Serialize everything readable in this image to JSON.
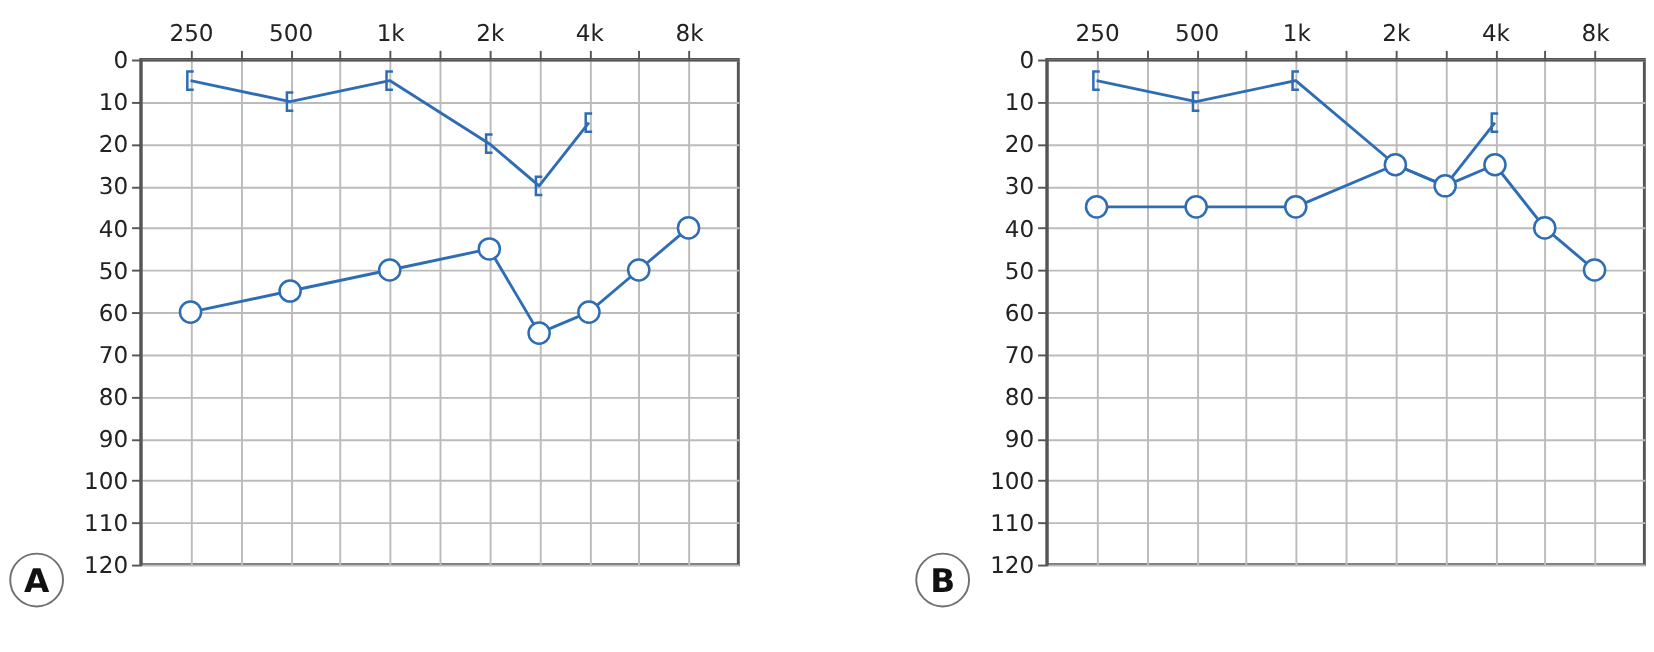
{
  "chart_data": [
    {
      "type": "line",
      "categories": [
        "250",
        null,
        "500",
        null,
        "1k",
        null,
        "2k",
        null,
        "4k",
        null,
        "8k"
      ],
      "ylim": [
        120,
        0
      ],
      "yticks": [
        0,
        10,
        20,
        30,
        40,
        50,
        60,
        70,
        80,
        90,
        100,
        110,
        120
      ],
      "grid": true,
      "legend": false,
      "line_style": "solid",
      "annotations": [
        "A"
      ],
      "series": [
        {
          "color": "#2e6db4",
          "marker": "cross",
          "values": [
            5,
            null,
            10,
            null,
            5,
            null,
            20,
            30,
            15,
            null,
            null
          ]
        },
        {
          "color": "#2e6db4",
          "marker": "circle",
          "values": [
            60,
            null,
            55,
            null,
            50,
            null,
            45,
            65,
            60,
            50,
            40
          ]
        }
      ]
    },
    {
      "type": "line",
      "categories": [
        "250",
        null,
        "500",
        null,
        "1k",
        null,
        "2k",
        null,
        "4k",
        null,
        "8k"
      ],
      "ylim": [
        120,
        0
      ],
      "yticks": [
        0,
        10,
        20,
        30,
        40,
        50,
        60,
        70,
        80,
        90,
        100,
        110,
        120
      ],
      "grid": true,
      "legend": false,
      "line_style": "solid",
      "annotations": [
        "B"
      ],
      "series": [
        {
          "color": "#2e6db4",
          "marker": "cross",
          "values": [
            5,
            null,
            10,
            null,
            5,
            null,
            25,
            30,
            15,
            null,
            null
          ]
        },
        {
          "color": "#2e6db4",
          "marker": "circle",
          "values": [
            35,
            null,
            35,
            null,
            35,
            null,
            25,
            30,
            25,
            40,
            50
          ]
        }
      ]
    }
  ]
}
